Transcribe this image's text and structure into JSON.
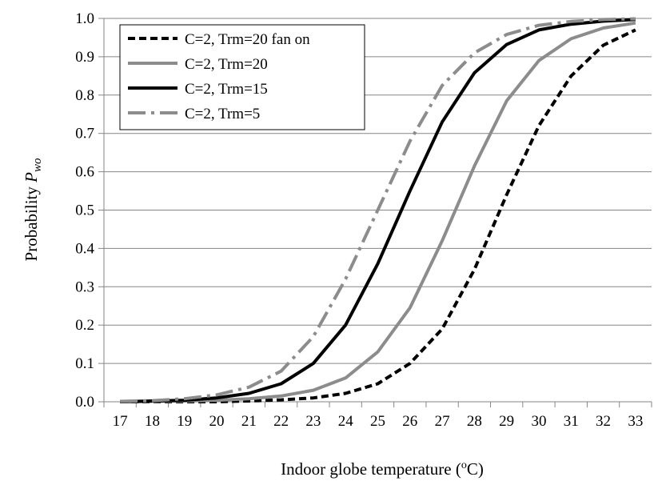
{
  "chart_data": {
    "type": "line",
    "xlabel": "Indoor globe temperature (",
    "xlabel_sup": "o",
    "xlabel_unit": "C)",
    "ylabel": "Probability ",
    "ylabel_italic": "P",
    "ylabel_sub": "wo",
    "x": [
      17,
      18,
      19,
      20,
      21,
      22,
      23,
      24,
      25,
      26,
      27,
      28,
      29,
      30,
      31,
      32,
      33
    ],
    "x_ticks": [
      "17",
      "18",
      "19",
      "20",
      "21",
      "22",
      "23",
      "24",
      "25",
      "26",
      "27",
      "28",
      "29",
      "30",
      "31",
      "32",
      "33"
    ],
    "y_ticks": [
      "0.0",
      "0.1",
      "0.2",
      "0.3",
      "0.4",
      "0.5",
      "0.6",
      "0.7",
      "0.8",
      "0.9",
      "1.0"
    ],
    "ylim": [
      0,
      1
    ],
    "grid": "horizontal",
    "legend_position": "top-left",
    "series": [
      {
        "name": "C=2, Trm=20 fan on",
        "color": "#000000",
        "style": "dashed",
        "values": [
          0.0,
          0.0,
          0.0,
          0.0,
          0.002,
          0.005,
          0.01,
          0.022,
          0.047,
          0.1,
          0.19,
          0.345,
          0.54,
          0.72,
          0.85,
          0.93,
          0.97
        ]
      },
      {
        "name": "C=2, Trm=20",
        "color": "#8c8c8c",
        "style": "solid",
        "values": [
          0.0,
          0.001,
          0.002,
          0.004,
          0.008,
          0.015,
          0.03,
          0.062,
          0.13,
          0.245,
          0.42,
          0.615,
          0.785,
          0.89,
          0.947,
          0.975,
          0.988
        ]
      },
      {
        "name": "C=2, Trm=15",
        "color": "#000000",
        "style": "solid",
        "values": [
          0.0,
          0.002,
          0.004,
          0.01,
          0.022,
          0.047,
          0.1,
          0.2,
          0.36,
          0.55,
          0.73,
          0.858,
          0.932,
          0.97,
          0.985,
          0.993,
          0.997
        ]
      },
      {
        "name": "C=2, Trm=5",
        "color": "#8c8c8c",
        "style": "dash-dot",
        "values": [
          0.001,
          0.003,
          0.008,
          0.018,
          0.038,
          0.08,
          0.17,
          0.32,
          0.5,
          0.68,
          0.825,
          0.91,
          0.958,
          0.982,
          0.992,
          0.997,
          0.999
        ]
      }
    ]
  }
}
